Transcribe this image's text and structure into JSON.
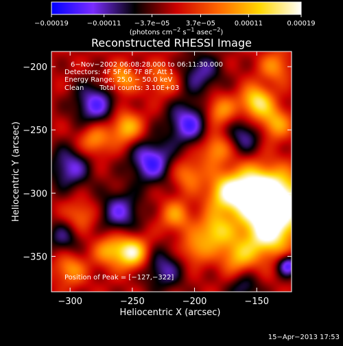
{
  "chart_data": {
    "type": "heatmap",
    "title": "Reconstructed RHESSI Image",
    "xlabel": "Heliocentric X (arcsec)",
    "ylabel": "Heliocentric Y (arcsec)",
    "xlim": [
      -315,
      -122
    ],
    "ylim": [
      -378,
      -188
    ],
    "x_ticks": [
      {
        "value": -300,
        "label": "−300"
      },
      {
        "value": -250,
        "label": "−250"
      },
      {
        "value": -200,
        "label": "−200"
      },
      {
        "value": -150,
        "label": "−150"
      }
    ],
    "y_ticks": [
      {
        "value": -200,
        "label": "−200"
      },
      {
        "value": -250,
        "label": "−250"
      },
      {
        "value": -300,
        "label": "−300"
      },
      {
        "value": -350,
        "label": "−350"
      }
    ],
    "colorbar": {
      "range": [
        -0.00019,
        0.00019
      ],
      "ticks": [
        {
          "value": -0.00019,
          "label": "−0.00019"
        },
        {
          "value": -0.00011,
          "label": "−0.00011"
        },
        {
          "value": -3.7e-05,
          "label": "−3.7e−05"
        },
        {
          "value": 3.7e-05,
          "label": "3.7e−05"
        },
        {
          "value": 0.00011,
          "label": "0.00011"
        },
        {
          "value": 0.00019,
          "label": "0.00019"
        }
      ],
      "units": {
        "prefix": "(photons cm",
        "exp1": "−2",
        "mid1": " s",
        "exp2": "−1",
        "mid2": " asec",
        "exp3": "−2",
        "suffix": ")"
      },
      "colormap": [
        "#0000ff",
        "#7a2cff",
        "#000000",
        "#cc0000",
        "#ff6600",
        "#ffd700",
        "#ffffff"
      ]
    },
    "annotations": {
      "time_range": "6−Nov−2002 06:08:28.000 to 06:11:30.000",
      "detectors": "Detectors: 4F 5F 6F 7F 8F, Att 1",
      "energy_range": "Energy Range: 25.0 − 50.0 keV",
      "clean": "Clean",
      "total_counts": "Total counts: 3.10E+03",
      "peak_label": "Position of Peak = ",
      "peak_value": "[−127,−322]"
    },
    "blobs": [
      {
        "x": -132,
        "y": -308,
        "amp": 1.4,
        "s": 16
      },
      {
        "x": -153,
        "y": -300,
        "amp": 1.3,
        "s": 14
      },
      {
        "x": -142,
        "y": -333,
        "amp": 1.0,
        "s": 13
      },
      {
        "x": -175,
        "y": -300,
        "amp": 0.85,
        "s": 11
      },
      {
        "x": -183,
        "y": -330,
        "amp": 0.85,
        "s": 10
      },
      {
        "x": -165,
        "y": -350,
        "amp": 0.7,
        "s": 10
      },
      {
        "x": -150,
        "y": -228,
        "amp": 1.0,
        "s": 9
      },
      {
        "x": -135,
        "y": -245,
        "amp": 0.7,
        "s": 9
      },
      {
        "x": -250,
        "y": -347,
        "amp": 1.1,
        "s": 9
      },
      {
        "x": -268,
        "y": -345,
        "amp": 0.65,
        "s": 9
      },
      {
        "x": -255,
        "y": -248,
        "amp": 0.8,
        "s": 9
      },
      {
        "x": -280,
        "y": -258,
        "amp": 0.65,
        "s": 9
      },
      {
        "x": -258,
        "y": -210,
        "amp": 0.7,
        "s": 8
      },
      {
        "x": -180,
        "y": -235,
        "amp": 0.65,
        "s": 9
      },
      {
        "x": -183,
        "y": -265,
        "amp": 0.65,
        "s": 9
      },
      {
        "x": -205,
        "y": -285,
        "amp": 0.55,
        "s": 9
      },
      {
        "x": -215,
        "y": -318,
        "amp": 0.6,
        "s": 9
      },
      {
        "x": -200,
        "y": -345,
        "amp": 0.55,
        "s": 9
      },
      {
        "x": -300,
        "y": -360,
        "amp": 0.6,
        "s": 9
      },
      {
        "x": -292,
        "y": -318,
        "amp": 0.5,
        "s": 9
      },
      {
        "x": -225,
        "y": -210,
        "amp": 0.5,
        "s": 9
      },
      {
        "x": -135,
        "y": -200,
        "amp": 0.55,
        "s": 9
      },
      {
        "x": -280,
        "y": -230,
        "amp": -0.8,
        "s": 12
      },
      {
        "x": -235,
        "y": -275,
        "amp": -0.9,
        "s": 12
      },
      {
        "x": -205,
        "y": -245,
        "amp": -0.85,
        "s": 12
      },
      {
        "x": -300,
        "y": -280,
        "amp": -0.7,
        "s": 12
      },
      {
        "x": -260,
        "y": -315,
        "amp": -0.7,
        "s": 12
      },
      {
        "x": -160,
        "y": -255,
        "amp": -0.6,
        "s": 10
      },
      {
        "x": -225,
        "y": -360,
        "amp": -0.6,
        "s": 12
      },
      {
        "x": -305,
        "y": -335,
        "amp": -0.5,
        "s": 10
      },
      {
        "x": -125,
        "y": -357,
        "amp": -0.9,
        "s": 6
      },
      {
        "x": -195,
        "y": -205,
        "amp": -0.6,
        "s": 12
      },
      {
        "x": -160,
        "y": -375,
        "amp": -0.5,
        "s": 9
      }
    ]
  },
  "footer": {
    "date": "15−Apr−2013 17:53"
  }
}
